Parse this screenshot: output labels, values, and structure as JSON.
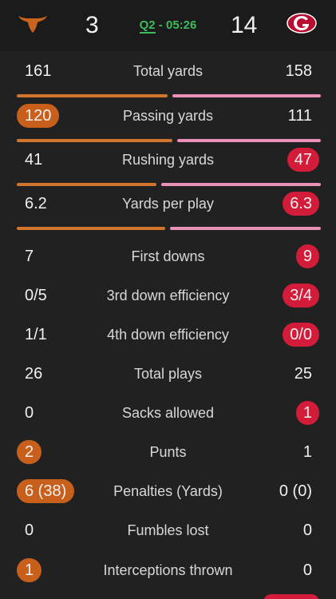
{
  "header": {
    "home_logo": "longhorn-icon",
    "away_logo": "georgia-g-icon",
    "home_score": "3",
    "away_score": "14",
    "quarter": "Q2",
    "separator": " - ",
    "clock": "05:26",
    "clock_color": "#3dbb5c"
  },
  "colors": {
    "home": "#d0752b",
    "away": "#e791b6",
    "home_highlight": "#c8601c",
    "away_highlight": "#d31b3a"
  },
  "stats": [
    {
      "label": "Total yards",
      "home": "161",
      "away": "158",
      "leader": "",
      "bar_home_fraction": 0.505
    },
    {
      "label": "Passing yards",
      "home": "120",
      "away": "111",
      "leader": "home",
      "bar_home_fraction": 0.519
    },
    {
      "label": "Rushing yards",
      "home": "41",
      "away": "47",
      "leader": "away",
      "bar_home_fraction": 0.466
    },
    {
      "label": "Yards per play",
      "home": "6.2",
      "away": "6.3",
      "leader": "away",
      "bar_home_fraction": 0.496
    },
    {
      "label": "First downs",
      "home": "7",
      "away": "9",
      "leader": "away"
    },
    {
      "label": "3rd down efficiency",
      "home": "0/5",
      "away": "3/4",
      "leader": "away"
    },
    {
      "label": "4th down efficiency",
      "home": "1/1",
      "away": "0/0",
      "leader": "away"
    },
    {
      "label": "Total plays",
      "home": "26",
      "away": "25",
      "leader": ""
    },
    {
      "label": "Sacks allowed",
      "home": "0",
      "away": "1",
      "leader": "away"
    },
    {
      "label": "Punts",
      "home": "2",
      "away": "1",
      "leader": "home"
    },
    {
      "label": "Penalties (Yards)",
      "home": "6 (38)",
      "away": "0 (0)",
      "leader": "home"
    },
    {
      "label": "Fumbles lost",
      "home": "0",
      "away": "0",
      "leader": ""
    },
    {
      "label": "Interceptions thrown",
      "home": "1",
      "away": "0",
      "leader": "home"
    }
  ]
}
